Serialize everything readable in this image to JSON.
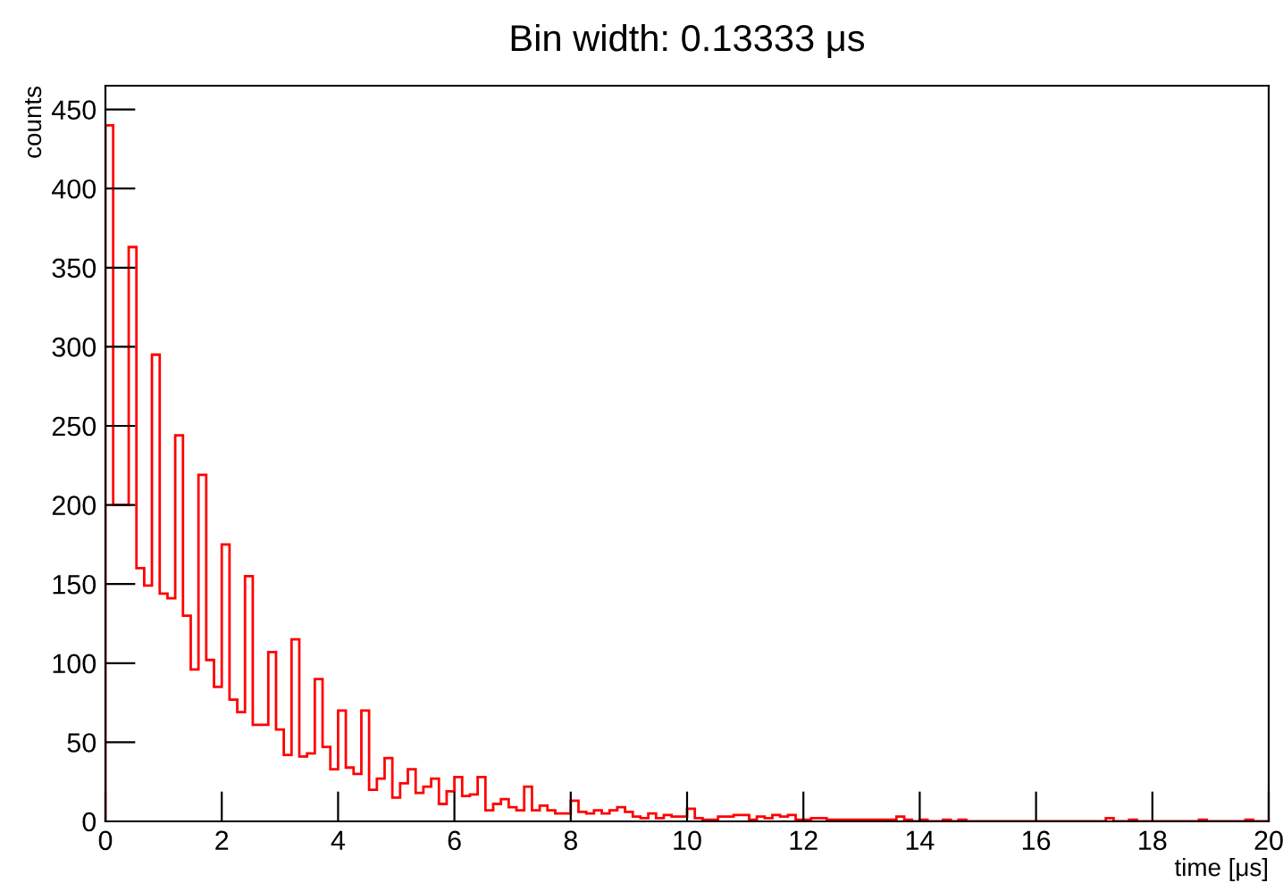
{
  "chart_data": {
    "type": "histogram",
    "title": "Bin width: 0.13333 μs",
    "xlabel": "time [μs]",
    "ylabel": "counts",
    "color": "#ff0000",
    "bins": [
      0,
      0.1333,
      0.2667,
      0.4,
      0.5333,
      0.6667,
      0.8,
      0.9333,
      1.0667,
      1.2,
      1.3333,
      1.4667,
      1.6,
      1.7333,
      1.8667,
      2,
      2.1333,
      2.2667,
      2.4,
      2.5333,
      2.6667,
      2.8,
      2.9333,
      3.0667,
      3.2,
      3.3333,
      3.4667,
      3.6,
      3.7333,
      3.8667,
      4,
      4.1333,
      4.2667,
      4.4,
      4.5333,
      4.6667,
      4.8,
      4.9333,
      5.0667,
      5.2,
      5.3333,
      5.4667,
      5.6,
      5.7333,
      5.8667,
      6,
      6.1333,
      6.2667,
      6.4,
      6.5333,
      6.6667,
      6.8,
      6.9333,
      7.0667,
      7.2,
      7.3333,
      7.4667,
      7.6,
      7.7333,
      7.8667,
      8,
      8.1333,
      8.2667,
      8.4,
      8.5333,
      8.6667,
      8.8,
      8.9333,
      9.0667,
      9.2,
      9.3333,
      9.4667,
      9.6,
      9.7333,
      9.8667,
      10,
      10.1333,
      10.2667,
      10.4,
      10.5333,
      10.6667,
      10.8,
      10.9333,
      11.0667,
      11.2,
      11.3333,
      11.4667,
      11.6,
      11.7333,
      11.8667,
      12,
      12.1333,
      12.2667,
      12.4,
      12.5333,
      12.6667,
      12.8,
      12.9333,
      13.0667,
      13.2,
      13.3333,
      13.4667,
      13.6,
      13.7333,
      13.8667,
      14,
      14.1333,
      14.2667,
      14.4,
      14.5333,
      14.6667,
      14.8,
      14.9333,
      15.0667,
      15.2,
      15.3333,
      15.4667,
      15.6,
      15.7333,
      15.8667,
      16,
      16.1333,
      16.2667,
      16.4,
      16.5333,
      16.6667,
      16.8,
      16.9333,
      17.0667,
      17.2,
      17.3333,
      17.4667,
      17.6,
      17.7333,
      17.8667,
      18,
      18.1333,
      18.2667,
      18.4,
      18.5333,
      18.6667,
      18.8,
      18.9333,
      19.0667,
      19.2,
      19.3333,
      19.4667,
      19.6,
      19.7333,
      19.8667,
      20
    ],
    "values": [
      440,
      200,
      200,
      363,
      160,
      149,
      295,
      144,
      141,
      244,
      130,
      96,
      219,
      102,
      85,
      175,
      77,
      69,
      155,
      61,
      61,
      107,
      58,
      42,
      115,
      41,
      43,
      90,
      47,
      33,
      70,
      34,
      30,
      70,
      20,
      27,
      40,
      15,
      24,
      33,
      18,
      22,
      27,
      11,
      19,
      28,
      16,
      17,
      28,
      7,
      11,
      14,
      9,
      7,
      22,
      7,
      10,
      7,
      5,
      5,
      13,
      6,
      5,
      7,
      5,
      7,
      9,
      6,
      3,
      2,
      5,
      2,
      4,
      3,
      3,
      8,
      2,
      1,
      1,
      3,
      3,
      4,
      4,
      1,
      3,
      2,
      4,
      3,
      4,
      1,
      1,
      2,
      2,
      1,
      1,
      1,
      1,
      1,
      1,
      1,
      1,
      1,
      3,
      1,
      0,
      1,
      0,
      0,
      1,
      0,
      1,
      0,
      0,
      0,
      0,
      0,
      0,
      0,
      0,
      0,
      0,
      0,
      0,
      0,
      0,
      0,
      0,
      0,
      0,
      2,
      0,
      0,
      1,
      0,
      0,
      0,
      0,
      0,
      0,
      0,
      0,
      1,
      0,
      0,
      0,
      0,
      0,
      1,
      0,
      0
    ],
    "xlim": [
      0,
      20
    ],
    "ylim": [
      0,
      465
    ],
    "xticks": [
      0,
      2,
      4,
      6,
      8,
      10,
      12,
      14,
      16,
      18,
      20
    ],
    "yticks": [
      0,
      50,
      100,
      150,
      200,
      250,
      300,
      350,
      400,
      450
    ],
    "grid": false
  }
}
